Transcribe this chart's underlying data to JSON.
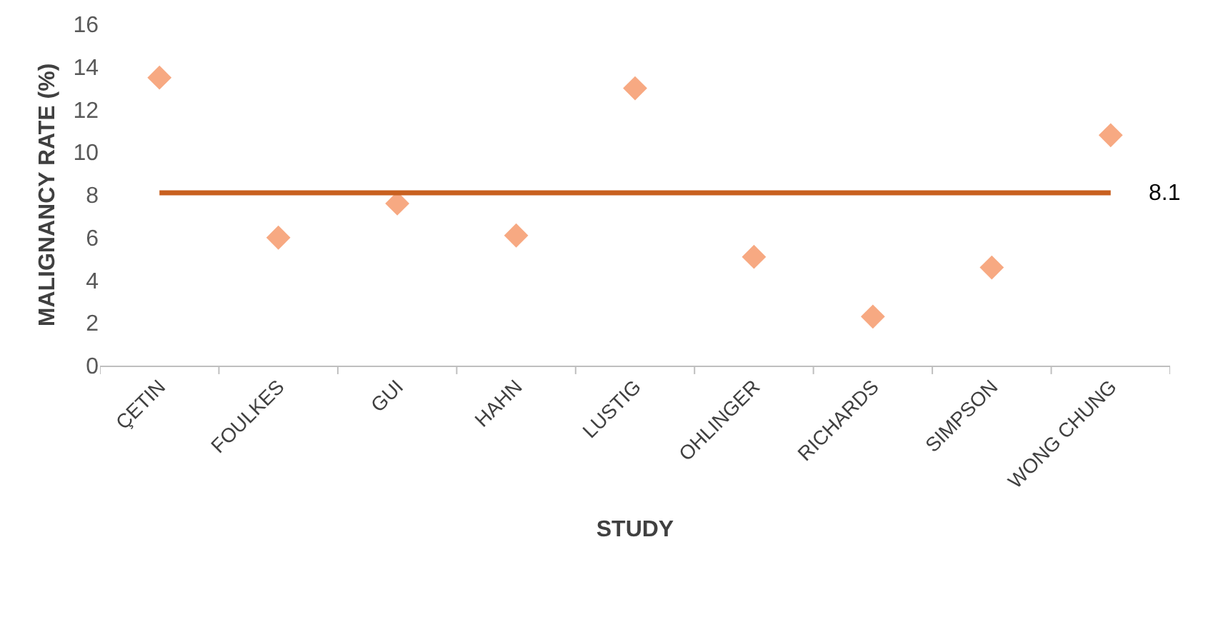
{
  "chart_data": {
    "type": "scatter",
    "xlabel": "STUDY",
    "ylabel": "MALIGNANCY RATE (%)",
    "categories": [
      "ÇETIN",
      "FOULKES",
      "GUI",
      "HAHN",
      "LUSTIG",
      "OHLINGER",
      "RICHARDS",
      "SIMPSON",
      "WONG CHUNG"
    ],
    "series": [
      {
        "color": "#f7a982",
        "values": [
          13.5,
          6.0,
          7.6,
          6.1,
          13.0,
          5.1,
          2.3,
          4.6,
          10.8
        ]
      }
    ],
    "marker": "diamond",
    "ylim": [
      0,
      16
    ],
    "yticks": [
      0,
      2,
      4,
      6,
      8,
      10,
      12,
      14,
      16
    ],
    "ref_lines": [
      {
        "axis": "y",
        "value": 8.1,
        "label": "8.1",
        "color": "#c8601f"
      }
    ]
  }
}
